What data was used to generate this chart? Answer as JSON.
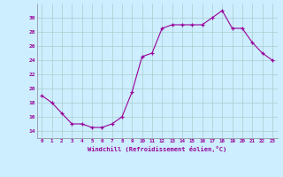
{
  "hours": [
    0,
    1,
    2,
    3,
    4,
    5,
    6,
    7,
    8,
    9,
    10,
    11,
    12,
    13,
    14,
    15,
    16,
    17,
    18,
    19,
    20,
    21,
    22,
    23
  ],
  "values": [
    19,
    18,
    16.5,
    15,
    15,
    14.5,
    14.5,
    15,
    16,
    19.5,
    24.5,
    25,
    28.5,
    29,
    29,
    29,
    29,
    30,
    31,
    28.5,
    28.5,
    26.5,
    25,
    24
  ],
  "line_color": "#990099",
  "marker": "+",
  "marker_color": "#990099",
  "bg_color": "#cceeff",
  "grid_color": "#aacccc",
  "xlabel": "Windchill (Refroidissement éolien,°C)",
  "xlabel_color": "#990099",
  "tick_color": "#990099",
  "ylim": [
    13,
    32
  ],
  "yticks": [
    14,
    16,
    18,
    20,
    22,
    24,
    26,
    28,
    30
  ],
  "xlim": [
    -0.5,
    23.5
  ],
  "xticks": [
    0,
    1,
    2,
    3,
    4,
    5,
    6,
    7,
    8,
    9,
    10,
    11,
    12,
    13,
    14,
    15,
    16,
    17,
    18,
    19,
    20,
    21,
    22,
    23
  ]
}
